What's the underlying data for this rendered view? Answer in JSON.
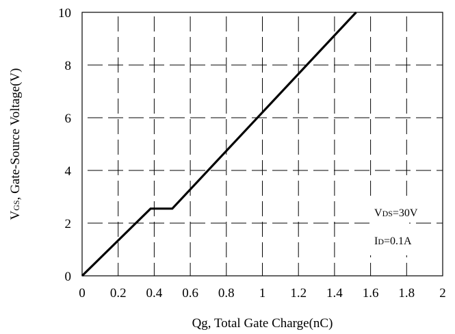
{
  "chart_data": {
    "type": "line",
    "title": "",
    "xlabel": "Qg, Total Gate Charge(nC)",
    "ylabel_parts": {
      "main": "V",
      "sub": "GS",
      "rest": ", Gate-Source Voltage(V)"
    },
    "xlim": [
      0,
      2
    ],
    "ylim": [
      0,
      10
    ],
    "x_ticks": [
      "0",
      "0.2",
      "0.4",
      "0.6",
      "0.8",
      "1",
      "1.2",
      "1.4",
      "1.6",
      "1.8",
      "2"
    ],
    "y_ticks": [
      "0",
      "2",
      "4",
      "6",
      "8",
      "10"
    ],
    "grid": true,
    "grid_style": "dashed",
    "series": [
      {
        "color": "#000000",
        "x": [
          0,
          0.38,
          0.5,
          1.52
        ],
        "y": [
          0,
          2.55,
          2.55,
          10
        ]
      }
    ],
    "annotations": [
      {
        "main": "V",
        "sub": "DS",
        "rest": "=30V"
      },
      {
        "main": "I",
        "sub": "D",
        "rest": "=0.1A"
      }
    ]
  }
}
